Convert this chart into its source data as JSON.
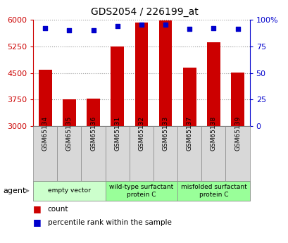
{
  "title": "GDS2054 / 226199_at",
  "samples": [
    "GSM65134",
    "GSM65135",
    "GSM65136",
    "GSM65131",
    "GSM65132",
    "GSM65133",
    "GSM65137",
    "GSM65138",
    "GSM65139"
  ],
  "counts": [
    4580,
    3750,
    3770,
    5250,
    5920,
    5980,
    4650,
    5350,
    4500
  ],
  "percentiles": [
    92,
    90,
    90,
    94,
    95,
    95,
    91,
    92,
    91
  ],
  "ymin": 3000,
  "ymax": 6000,
  "yticks": [
    3000,
    3750,
    4500,
    5250,
    6000
  ],
  "right_yticks": [
    0,
    25,
    50,
    75,
    100
  ],
  "right_yticklabels": [
    "0",
    "25",
    "50",
    "75",
    "100%"
  ],
  "bar_color": "#cc0000",
  "dot_color": "#0000cc",
  "groups": [
    {
      "label": "empty vector",
      "start": 0,
      "end": 3,
      "color": "#ccffcc"
    },
    {
      "label": "wild-type surfactant\nprotein C",
      "start": 3,
      "end": 6,
      "color": "#99ff99"
    },
    {
      "label": "misfolded surfactant\nprotein C",
      "start": 6,
      "end": 9,
      "color": "#99ff99"
    }
  ],
  "agent_label": "agent",
  "legend_count_label": "count",
  "legend_pct_label": "percentile rank within the sample",
  "bar_color_leg": "#cc0000",
  "dot_color_leg": "#0000cc",
  "bar_width": 0.55,
  "sample_cell_color": "#d8d8d8",
  "sample_cell_edge": "#888888",
  "plot_bg": "#ffffff",
  "grid_color": "#333333",
  "grid_alpha": 0.5
}
